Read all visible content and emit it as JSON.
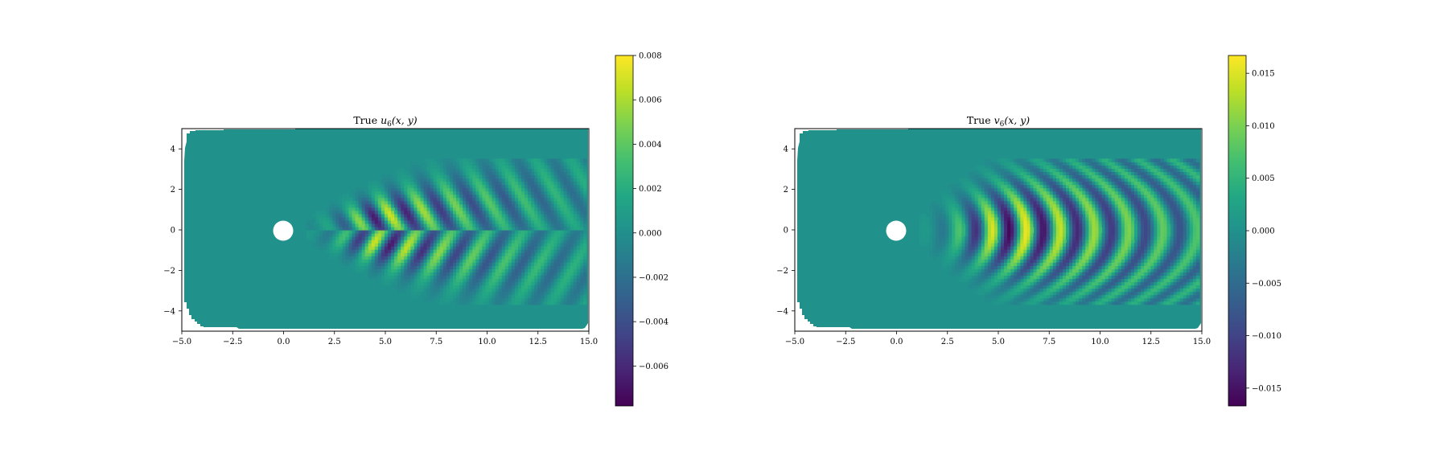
{
  "chart_data": [
    {
      "type": "heatmap",
      "title": "True u_6(x, y)",
      "title_plain": "True ",
      "title_var": "u",
      "title_sub": "6",
      "title_args": "(x, y)",
      "xlabel": "",
      "ylabel": "",
      "xlim": [
        -5.0,
        15.0
      ],
      "ylim": [
        -5,
        5
      ],
      "xticks": [
        "−5.0",
        "−2.5",
        "0.0",
        "2.5",
        "5.0",
        "7.5",
        "10.0",
        "12.5",
        "15.0"
      ],
      "xtick_values": [
        -5.0,
        -2.5,
        0.0,
        2.5,
        5.0,
        7.5,
        10.0,
        12.5,
        15.0
      ],
      "yticks": [
        "−4",
        "−2",
        "0",
        "2",
        "4"
      ],
      "ytick_values": [
        -4,
        -2,
        0,
        2,
        4
      ],
      "colormap": "viridis",
      "colorbar_range": [
        -0.0078,
        0.008
      ],
      "colorbar_ticks": [
        "−0.006",
        "−0.004",
        "−0.002",
        "0.000",
        "0.002",
        "0.004",
        "0.006",
        "0.008"
      ],
      "colorbar_tick_values": [
        -0.006,
        -0.004,
        -0.002,
        0.0,
        0.002,
        0.004,
        0.006,
        0.008
      ],
      "cylinder": {
        "center": [
          0,
          0
        ],
        "radius": 0.5
      },
      "pattern": "antisymmetric wake mode: peaks above and below the centreline, chevron shaped, decaying downstream",
      "grid": false
    },
    {
      "type": "heatmap",
      "title": "True v_6(x, y)",
      "title_plain": "True ",
      "title_var": "v",
      "title_sub": "6",
      "title_args": "(x, y)",
      "xlabel": "",
      "ylabel": "",
      "xlim": [
        -5.0,
        15.0
      ],
      "ylim": [
        -5,
        5
      ],
      "xticks": [
        "−5.0",
        "−2.5",
        "0.0",
        "2.5",
        "5.0",
        "7.5",
        "10.0",
        "12.5",
        "15.0"
      ],
      "xtick_values": [
        -5.0,
        -2.5,
        0.0,
        2.5,
        5.0,
        7.5,
        10.0,
        12.5,
        15.0
      ],
      "yticks": [
        "−4",
        "−2",
        "0",
        "2",
        "4"
      ],
      "ytick_values": [
        -4,
        -2,
        0,
        2,
        4
      ],
      "colormap": "viridis",
      "colorbar_range": [
        -0.0167,
        0.0167
      ],
      "colorbar_ticks": [
        "−0.015",
        "−0.010",
        "−0.005",
        "0.000",
        "0.005",
        "0.010",
        "0.015"
      ],
      "colorbar_tick_values": [
        -0.015,
        -0.01,
        -0.005,
        0.0,
        0.005,
        0.01,
        0.015
      ],
      "cylinder": {
        "center": [
          0,
          0
        ],
        "radius": 0.5
      },
      "pattern": "symmetric wake mode: vertical bands along the centreline, strongest near x = 6, decaying downstream",
      "grid": false
    }
  ],
  "colors": {
    "background_field": "#21918c",
    "viridis_low": "#440154",
    "viridis_high": "#fde725",
    "cylinder": "#ffffff"
  }
}
